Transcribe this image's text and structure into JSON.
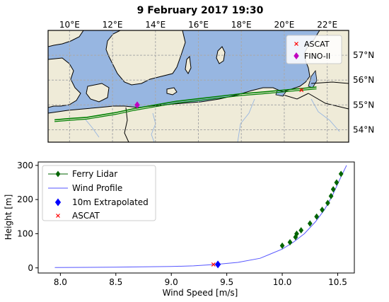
{
  "chart_data": [
    {
      "type": "map",
      "title": "9 February 2017 19:30",
      "lon_ticks": [
        "10°E",
        "12°E",
        "14°E",
        "16°E",
        "18°E",
        "20°E",
        "22°E"
      ],
      "lat_ticks": [
        "57°N",
        "56°N",
        "55°N",
        "54°N"
      ],
      "lon_range": [
        9,
        23
      ],
      "lat_range": [
        53.5,
        58
      ],
      "land_color": "#efebd8",
      "sea_color": "#97b6e1",
      "track_color": "#008000",
      "legend": {
        "placement": "top-right",
        "entries": [
          {
            "label": "ASCAT",
            "marker": "x",
            "color": "#ff0000"
          },
          {
            "label": "FINO-II",
            "marker": "diamond",
            "color": "#c000c0"
          }
        ]
      },
      "fino": {
        "lon": 13.15,
        "lat": 55.0
      },
      "ascat": {
        "lon": 20.8,
        "lat": 55.6
      },
      "track": [
        [
          9.3,
          54.4
        ],
        [
          10.0,
          54.45
        ],
        [
          10.8,
          54.5
        ],
        [
          11.5,
          54.6
        ],
        [
          12.2,
          54.7
        ],
        [
          13.0,
          54.85
        ],
        [
          14.0,
          55.0
        ],
        [
          15.0,
          55.15
        ],
        [
          16.0,
          55.25
        ],
        [
          17.0,
          55.35
        ],
        [
          18.0,
          55.45
        ],
        [
          19.0,
          55.52
        ],
        [
          20.0,
          55.6
        ],
        [
          21.0,
          55.68
        ],
        [
          21.5,
          55.72
        ]
      ],
      "grid": true
    },
    {
      "type": "line",
      "xlabel": "Wind Speed [m/s]",
      "ylabel": "Height [m]",
      "xlim": [
        7.8,
        10.65
      ],
      "ylim": [
        -15,
        310
      ],
      "xticks": [
        8.0,
        8.5,
        9.0,
        9.5,
        10.0,
        10.5
      ],
      "yticks": [
        0,
        100,
        200,
        300
      ],
      "legend_placement": "top-left",
      "series": [
        {
          "name": "Ferry Lidar",
          "color": "#006400",
          "marker": "diamond",
          "points": [
            [
              10.0,
              65
            ],
            [
              10.07,
              75
            ],
            [
              10.12,
              90
            ],
            [
              10.13,
              100
            ],
            [
              10.17,
              110
            ],
            [
              10.25,
              130
            ],
            [
              10.31,
              150
            ],
            [
              10.36,
              170
            ],
            [
              10.41,
              190
            ],
            [
              10.44,
              210
            ],
            [
              10.46,
              230
            ],
            [
              10.49,
              250
            ],
            [
              10.53,
              275
            ]
          ]
        },
        {
          "name": "Wind Profile",
          "color": "#5555ff",
          "line": [
            [
              7.95,
              1
            ],
            [
              8.5,
              2
            ],
            [
              9.0,
              4
            ],
            [
              9.2,
              6
            ],
            [
              9.4,
              10
            ],
            [
              9.6,
              16
            ],
            [
              9.8,
              28
            ],
            [
              10.0,
              55
            ],
            [
              10.1,
              75
            ],
            [
              10.2,
              100
            ],
            [
              10.3,
              135
            ],
            [
              10.38,
              170
            ],
            [
              10.45,
              210
            ],
            [
              10.52,
              260
            ],
            [
              10.58,
              300
            ]
          ]
        },
        {
          "name": "10m Extrapolated",
          "color": "#0000ff",
          "marker": "diamond",
          "points": [
            [
              9.42,
              10
            ]
          ]
        },
        {
          "name": "ASCAT",
          "color": "#ff0000",
          "marker": "x",
          "points": [
            [
              9.38,
              10
            ]
          ]
        }
      ],
      "grid": false
    }
  ]
}
